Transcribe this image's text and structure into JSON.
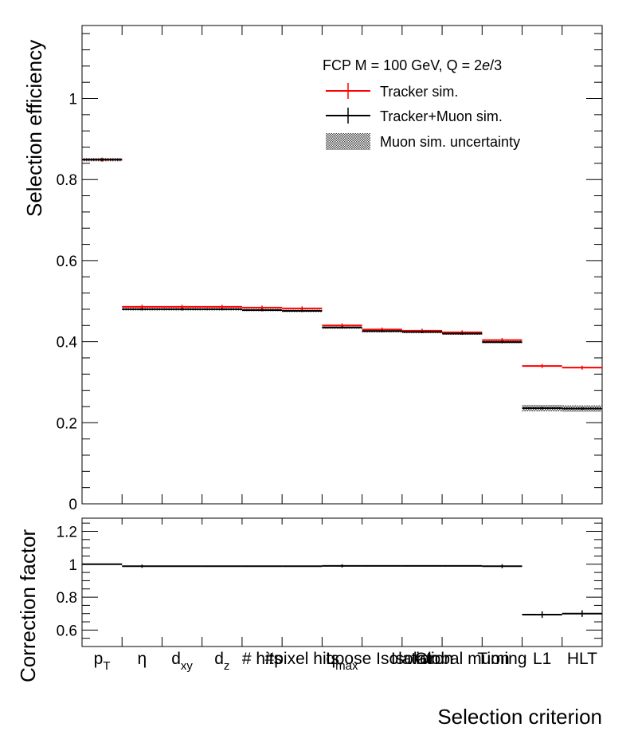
{
  "chart_data": [
    {
      "type": "step",
      "panel": "top",
      "ylabel": "Selection efficiency",
      "ylim": [
        0,
        1.18
      ],
      "yticks": [
        0,
        0.2,
        0.4,
        0.6,
        0.8,
        1
      ],
      "ytick_labels": [
        "0",
        "0.2",
        "0.4",
        "0.6",
        "0.8",
        "1"
      ],
      "legend": {
        "title": "FCP M = 100 GeV, Q = 2e/3",
        "title_parts": [
          "FCP M = 100 GeV, Q = 2",
          "e",
          "/3"
        ],
        "placement": "top-right",
        "entries": [
          "Tracker sim.",
          "Tracker+Muon sim.",
          "Muon sim. uncertainty"
        ]
      },
      "series": [
        {
          "name": "Tracker sim.",
          "color": "#ff0000",
          "values": [
            0.849,
            0.486,
            0.486,
            0.486,
            0.484,
            0.482,
            0.44,
            0.43,
            0.427,
            0.423,
            0.404,
            0.34,
            0.336
          ]
        },
        {
          "name": "Tracker+Muon sim.",
          "color": "#000000",
          "values": [
            0.849,
            0.48,
            0.48,
            0.48,
            0.478,
            0.476,
            0.435,
            0.426,
            0.424,
            0.42,
            0.399,
            0.236,
            0.235
          ]
        }
      ],
      "uncertainty_band": {
        "name": "Muon sim. uncertainty",
        "color": "#555555",
        "half_width": [
          0.004,
          0.003,
          0.003,
          0.003,
          0.003,
          0.003,
          0.003,
          0.003,
          0.003,
          0.003,
          0.003,
          0.008,
          0.008
        ]
      }
    },
    {
      "type": "step",
      "panel": "bottom",
      "ylabel": "Correction factor",
      "xlabel": "Selection criterion",
      "ylim": [
        0.5,
        1.28
      ],
      "yticks": [
        0.6,
        0.8,
        1,
        1.2
      ],
      "ytick_labels": [
        "0.6",
        "0.8",
        "1",
        "1.2"
      ],
      "series": [
        {
          "name": "Correction factor",
          "color": "#000000",
          "values": [
            1.0,
            0.988,
            0.988,
            0.988,
            0.988,
            0.988,
            0.99,
            0.99,
            0.99,
            0.99,
            0.988,
            0.694,
            0.7
          ],
          "errors": [
            0.0,
            0.01,
            0.0,
            0.0,
            0.0,
            0.0,
            0.01,
            0.0,
            0.0,
            0.0,
            0.012,
            0.02,
            0.02
          ]
        }
      ]
    }
  ],
  "categories": [
    {
      "main": "p",
      "sub": "T"
    },
    {
      "main": "η",
      "sub": ""
    },
    {
      "main": "d",
      "sub": "xy"
    },
    {
      "main": "d",
      "sub": "z"
    },
    {
      "main": "# hits",
      "sub": ""
    },
    {
      "main": "#pixel hits",
      "sub": ""
    },
    {
      "main": "q",
      "sub": "max"
    },
    {
      "main": "Loose Isolation",
      "sub": ""
    },
    {
      "main": "Isolation",
      "sub": ""
    },
    {
      "main": "Global muon",
      "sub": ""
    },
    {
      "main": "Timing",
      "sub": ""
    },
    {
      "main": "L1",
      "sub": ""
    },
    {
      "main": "HLT",
      "sub": ""
    }
  ]
}
